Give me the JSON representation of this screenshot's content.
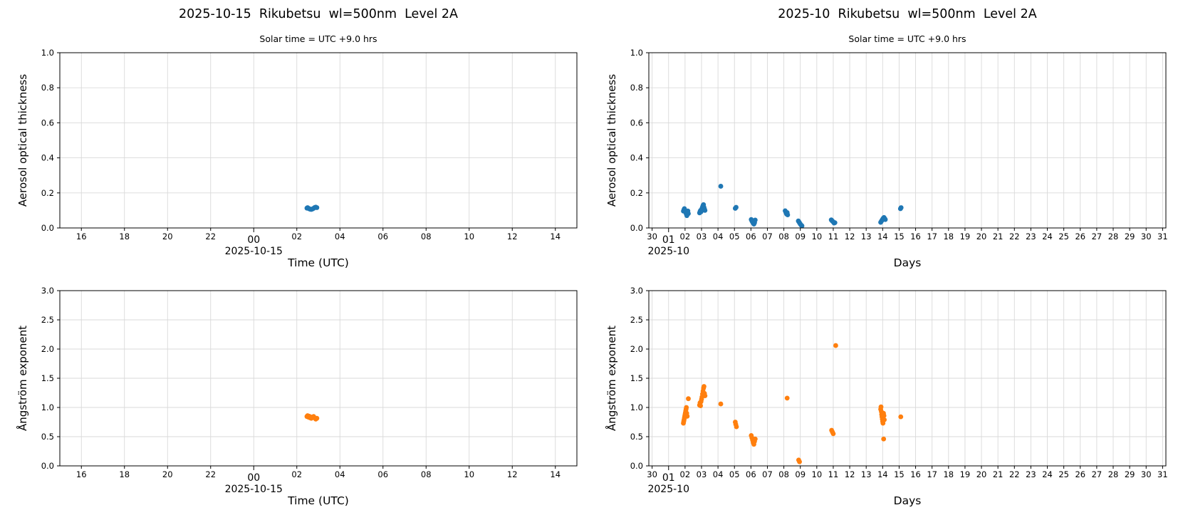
{
  "header": {
    "left_title": "2025-10-15  Rikubetsu  wl=500nm  Level 2A",
    "right_title": "2025-10  Rikubetsu  wl=500nm  Level 2A",
    "subtitle": "Solar time = UTC +9.0 hrs"
  },
  "colors": {
    "aot_marker": "#1f77b4",
    "angstrom_marker": "#ff7f0e",
    "grid": "#d9d9d9",
    "spine": "#000000",
    "text": "#000000"
  },
  "chart_data": [
    {
      "id": "aot-daily",
      "type": "scatter",
      "position": "top-left",
      "color": "#1f77b4",
      "marker_radius": 3.4,
      "xlabel": "Time (UTC)",
      "ylabel": "Aerosol optical thickness",
      "grid": true,
      "xlim": [
        -9,
        15
      ],
      "ylim": [
        0,
        1
      ],
      "xticks": [
        [
          -8,
          "16"
        ],
        [
          -6,
          "18"
        ],
        [
          -4,
          "20"
        ],
        [
          -2,
          "22"
        ],
        [
          0,
          "00"
        ],
        [
          2,
          "02"
        ],
        [
          4,
          "04"
        ],
        [
          6,
          "06"
        ],
        [
          8,
          "08"
        ],
        [
          10,
          "10"
        ],
        [
          12,
          "12"
        ],
        [
          14,
          "14"
        ]
      ],
      "major_xtick": 0,
      "date_label": "2025-10-15",
      "yticks": [
        [
          0,
          "0.0"
        ],
        [
          0.2,
          "0.2"
        ],
        [
          0.4,
          "0.4"
        ],
        [
          0.6,
          "0.6"
        ],
        [
          0.8,
          "0.8"
        ],
        [
          1,
          "1.0"
        ]
      ],
      "points": [
        [
          2.47,
          0.113
        ],
        [
          2.5,
          0.116
        ],
        [
          2.53,
          0.112
        ],
        [
          2.57,
          0.11
        ],
        [
          2.6,
          0.108
        ],
        [
          2.63,
          0.107
        ],
        [
          2.67,
          0.106
        ],
        [
          2.72,
          0.108
        ],
        [
          2.78,
          0.112
        ],
        [
          2.83,
          0.117
        ],
        [
          2.88,
          0.119
        ],
        [
          2.93,
          0.116
        ]
      ]
    },
    {
      "id": "aot-monthly",
      "type": "scatter",
      "position": "top-right",
      "color": "#1f77b4",
      "marker_radius": 3.4,
      "xlabel": "Days",
      "ylabel": "Aerosol optical thickness",
      "grid": true,
      "xlim": [
        -0.2,
        31.2
      ],
      "ylim": [
        0,
        1
      ],
      "xticks": [
        [
          0,
          "30"
        ],
        [
          1,
          "01"
        ],
        [
          2,
          "02"
        ],
        [
          3,
          "03"
        ],
        [
          4,
          "04"
        ],
        [
          5,
          "05"
        ],
        [
          6,
          "06"
        ],
        [
          7,
          "07"
        ],
        [
          8,
          "08"
        ],
        [
          9,
          "09"
        ],
        [
          10,
          "10"
        ],
        [
          11,
          "11"
        ],
        [
          12,
          "12"
        ],
        [
          13,
          "13"
        ],
        [
          14,
          "14"
        ],
        [
          15,
          "15"
        ],
        [
          16,
          "16"
        ],
        [
          17,
          "17"
        ],
        [
          18,
          "18"
        ],
        [
          19,
          "19"
        ],
        [
          20,
          "20"
        ],
        [
          21,
          "21"
        ],
        [
          22,
          "22"
        ],
        [
          23,
          "23"
        ],
        [
          24,
          "24"
        ],
        [
          25,
          "25"
        ],
        [
          26,
          "26"
        ],
        [
          27,
          "27"
        ],
        [
          28,
          "28"
        ],
        [
          29,
          "29"
        ],
        [
          30,
          "30"
        ],
        [
          31,
          "31"
        ]
      ],
      "major_xtick": 1,
      "date_label": "2025-10",
      "yticks": [
        [
          0,
          "0.0"
        ],
        [
          0.2,
          "0.2"
        ],
        [
          0.4,
          "0.4"
        ],
        [
          0.6,
          "0.6"
        ],
        [
          0.8,
          "0.8"
        ],
        [
          1,
          "1.0"
        ]
      ],
      "points": [
        [
          1.9,
          0.096
        ],
        [
          1.93,
          0.104
        ],
        [
          1.96,
          0.11
        ],
        [
          1.99,
          0.102
        ],
        [
          2.02,
          0.094
        ],
        [
          2.05,
          0.086
        ],
        [
          2.08,
          0.078
        ],
        [
          2.11,
          0.07
        ],
        [
          2.14,
          0.088
        ],
        [
          2.17,
          0.097
        ],
        [
          2.2,
          0.082
        ],
        [
          2.88,
          0.086
        ],
        [
          2.91,
          0.094
        ],
        [
          2.94,
          0.1
        ],
        [
          2.97,
          0.092
        ],
        [
          3.0,
          0.104
        ],
        [
          3.03,
          0.112
        ],
        [
          3.06,
          0.12
        ],
        [
          3.09,
          0.128
        ],
        [
          3.12,
          0.133
        ],
        [
          3.15,
          0.118
        ],
        [
          3.18,
          0.108
        ],
        [
          3.21,
          0.1
        ],
        [
          4.17,
          0.238
        ],
        [
          5.05,
          0.112
        ],
        [
          5.1,
          0.118
        ],
        [
          6.02,
          0.048
        ],
        [
          6.06,
          0.04
        ],
        [
          6.1,
          0.033
        ],
        [
          6.14,
          0.027
        ],
        [
          6.18,
          0.022
        ],
        [
          6.22,
          0.03
        ],
        [
          6.26,
          0.045
        ],
        [
          8.08,
          0.098
        ],
        [
          8.11,
          0.092
        ],
        [
          8.14,
          0.085
        ],
        [
          8.17,
          0.079
        ],
        [
          8.2,
          0.088
        ],
        [
          8.23,
          0.075
        ],
        [
          8.88,
          0.04
        ],
        [
          8.92,
          0.034
        ],
        [
          8.96,
          0.028
        ],
        [
          9.0,
          0.022
        ],
        [
          9.05,
          0.016
        ],
        [
          9.1,
          0.012
        ],
        [
          10.88,
          0.046
        ],
        [
          10.92,
          0.042
        ],
        [
          10.96,
          0.038
        ],
        [
          11.0,
          0.034
        ],
        [
          11.05,
          0.028
        ],
        [
          11.1,
          0.03
        ],
        [
          13.88,
          0.032
        ],
        [
          13.92,
          0.038
        ],
        [
          13.96,
          0.044
        ],
        [
          14.0,
          0.05
        ],
        [
          14.04,
          0.056
        ],
        [
          14.08,
          0.06
        ],
        [
          14.12,
          0.054
        ],
        [
          14.16,
          0.048
        ],
        [
          15.08,
          0.11
        ],
        [
          15.12,
          0.116
        ]
      ]
    },
    {
      "id": "angstrom-daily",
      "type": "scatter",
      "position": "bottom-left",
      "color": "#ff7f0e",
      "marker_radius": 3.4,
      "xlabel": "Time (UTC)",
      "ylabel": "Ångström exponent",
      "grid": true,
      "xlim": [
        -9,
        15
      ],
      "ylim": [
        0,
        3
      ],
      "xticks": [
        [
          -8,
          "16"
        ],
        [
          -6,
          "18"
        ],
        [
          -4,
          "20"
        ],
        [
          -2,
          "22"
        ],
        [
          0,
          "00"
        ],
        [
          2,
          "02"
        ],
        [
          4,
          "04"
        ],
        [
          6,
          "06"
        ],
        [
          8,
          "08"
        ],
        [
          10,
          "10"
        ],
        [
          12,
          "12"
        ],
        [
          14,
          "14"
        ]
      ],
      "major_xtick": 0,
      "date_label": "2025-10-15",
      "yticks": [
        [
          0,
          "0.0"
        ],
        [
          0.5,
          "0.5"
        ],
        [
          1,
          "1.0"
        ],
        [
          1.5,
          "1.5"
        ],
        [
          2,
          "2.0"
        ],
        [
          2.5,
          "2.5"
        ],
        [
          3,
          "3.0"
        ]
      ],
      "points": [
        [
          2.47,
          0.845
        ],
        [
          2.5,
          0.86
        ],
        [
          2.53,
          0.835
        ],
        [
          2.57,
          0.85
        ],
        [
          2.6,
          0.825
        ],
        [
          2.63,
          0.84
        ],
        [
          2.67,
          0.815
        ],
        [
          2.72,
          0.83
        ],
        [
          2.78,
          0.845
        ],
        [
          2.83,
          0.82
        ],
        [
          2.88,
          0.8
        ],
        [
          2.93,
          0.815
        ]
      ]
    },
    {
      "id": "angstrom-monthly",
      "type": "scatter",
      "position": "bottom-right",
      "color": "#ff7f0e",
      "marker_radius": 3.4,
      "xlabel": "Days",
      "ylabel": "Ångström exponent",
      "grid": true,
      "xlim": [
        -0.2,
        31.2
      ],
      "ylim": [
        0,
        3
      ],
      "xticks": [
        [
          0,
          "30"
        ],
        [
          1,
          "01"
        ],
        [
          2,
          "02"
        ],
        [
          3,
          "03"
        ],
        [
          4,
          "04"
        ],
        [
          5,
          "05"
        ],
        [
          6,
          "06"
        ],
        [
          7,
          "07"
        ],
        [
          8,
          "08"
        ],
        [
          9,
          "09"
        ],
        [
          10,
          "10"
        ],
        [
          11,
          "11"
        ],
        [
          12,
          "12"
        ],
        [
          13,
          "13"
        ],
        [
          14,
          "14"
        ],
        [
          15,
          "15"
        ],
        [
          16,
          "16"
        ],
        [
          17,
          "17"
        ],
        [
          18,
          "18"
        ],
        [
          19,
          "19"
        ],
        [
          20,
          "20"
        ],
        [
          21,
          "21"
        ],
        [
          22,
          "22"
        ],
        [
          23,
          "23"
        ],
        [
          24,
          "24"
        ],
        [
          25,
          "25"
        ],
        [
          26,
          "26"
        ],
        [
          27,
          "27"
        ],
        [
          28,
          "28"
        ],
        [
          29,
          "29"
        ],
        [
          30,
          "30"
        ],
        [
          31,
          "31"
        ]
      ],
      "major_xtick": 1,
      "date_label": "2025-10",
      "yticks": [
        [
          0,
          "0.0"
        ],
        [
          0.5,
          "0.5"
        ],
        [
          1,
          "1.0"
        ],
        [
          1.5,
          "1.5"
        ],
        [
          2,
          "2.0"
        ],
        [
          2.5,
          "2.5"
        ],
        [
          3,
          "3.0"
        ]
      ],
      "points": [
        [
          1.9,
          0.73
        ],
        [
          1.92,
          0.76
        ],
        [
          1.94,
          0.79
        ],
        [
          1.96,
          0.82
        ],
        [
          1.98,
          0.85
        ],
        [
          2.0,
          0.88
        ],
        [
          2.02,
          0.91
        ],
        [
          2.04,
          0.94
        ],
        [
          2.06,
          0.97
        ],
        [
          2.08,
          1.0
        ],
        [
          2.1,
          0.9
        ],
        [
          2.13,
          0.85
        ],
        [
          2.2,
          1.15
        ],
        [
          2.88,
          1.04
        ],
        [
          2.91,
          1.08
        ],
        [
          2.94,
          1.03
        ],
        [
          2.97,
          1.1
        ],
        [
          3.0,
          1.14
        ],
        [
          3.03,
          1.18
        ],
        [
          3.06,
          1.23
        ],
        [
          3.09,
          1.28
        ],
        [
          3.12,
          1.33
        ],
        [
          3.15,
          1.36
        ],
        [
          3.18,
          1.24
        ],
        [
          3.21,
          1.2
        ],
        [
          4.17,
          1.06
        ],
        [
          5.05,
          0.75
        ],
        [
          5.08,
          0.71
        ],
        [
          5.12,
          0.67
        ],
        [
          6.02,
          0.52
        ],
        [
          6.06,
          0.48
        ],
        [
          6.1,
          0.44
        ],
        [
          6.14,
          0.4
        ],
        [
          6.18,
          0.37
        ],
        [
          6.22,
          0.42
        ],
        [
          6.26,
          0.46
        ],
        [
          8.2,
          1.16
        ],
        [
          8.9,
          0.1
        ],
        [
          8.95,
          0.07
        ],
        [
          10.9,
          0.61
        ],
        [
          10.95,
          0.58
        ],
        [
          11.0,
          0.55
        ],
        [
          11.15,
          2.06
        ],
        [
          13.88,
          0.97
        ],
        [
          13.9,
          1.01
        ],
        [
          13.92,
          0.93
        ],
        [
          13.94,
          0.88
        ],
        [
          13.96,
          0.84
        ],
        [
          13.98,
          0.8
        ],
        [
          14.0,
          0.76
        ],
        [
          14.02,
          0.73
        ],
        [
          14.05,
          0.9
        ],
        [
          14.08,
          0.86
        ],
        [
          14.1,
          0.79
        ],
        [
          14.06,
          0.46
        ],
        [
          15.1,
          0.84
        ]
      ]
    }
  ]
}
